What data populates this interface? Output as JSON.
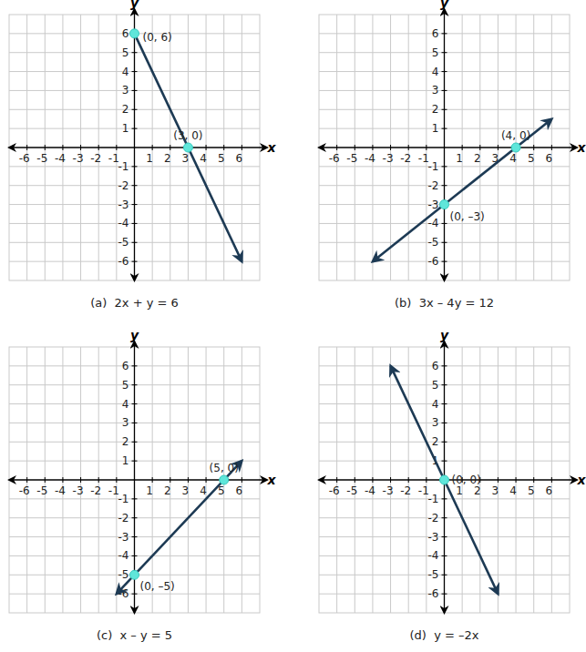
{
  "chart_data": [
    {
      "type": "line",
      "title": "(a)  2x + y = 6",
      "x_label": "x",
      "y_label": "y",
      "xlim": [
        -7,
        7
      ],
      "ylim": [
        -7,
        7
      ],
      "xticks": [
        -6,
        -5,
        -4,
        -3,
        -2,
        -1,
        1,
        2,
        3,
        4,
        5,
        6
      ],
      "yticks": [
        -6,
        -5,
        -4,
        -3,
        -2,
        -1,
        1,
        2,
        3,
        4,
        5,
        6
      ],
      "grid": true,
      "series": [
        {
          "color": "#1d3a54",
          "x": [
            0,
            6
          ],
          "values": [
            6,
            -6
          ]
        }
      ],
      "points": [
        {
          "x": 0,
          "y": 6,
          "label": "(0, 6)"
        },
        {
          "x": 3,
          "y": 0,
          "label": "(3, 0)"
        }
      ]
    },
    {
      "type": "line",
      "title": "(b)  3x – 4y = 12",
      "x_label": "x",
      "y_label": "y",
      "xlim": [
        -7,
        7
      ],
      "ylim": [
        -7,
        7
      ],
      "xticks": [
        -6,
        -5,
        -4,
        -3,
        -2,
        -1,
        1,
        2,
        3,
        4,
        5,
        6
      ],
      "yticks": [
        -6,
        -5,
        -4,
        -3,
        -2,
        -1,
        1,
        2,
        3,
        4,
        5,
        6
      ],
      "grid": true,
      "series": [
        {
          "color": "#1d3a54",
          "x": [
            -4,
            6
          ],
          "values": [
            -6,
            1.5
          ]
        }
      ],
      "points": [
        {
          "x": 4,
          "y": 0,
          "label": "(4, 0)"
        },
        {
          "x": 0,
          "y": -3,
          "label": "(0, –3)"
        }
      ]
    },
    {
      "type": "line",
      "title": "(c)  x – y = 5",
      "x_label": "x",
      "y_label": "y",
      "xlim": [
        -7,
        7
      ],
      "ylim": [
        -7,
        7
      ],
      "xticks": [
        -6,
        -5,
        -4,
        -3,
        -2,
        -1,
        1,
        2,
        3,
        4,
        5,
        6
      ],
      "yticks": [
        -6,
        -5,
        -4,
        -3,
        -2,
        -1,
        1,
        2,
        3,
        4,
        5,
        6
      ],
      "grid": true,
      "series": [
        {
          "color": "#1d3a54",
          "x": [
            -1,
            6
          ],
          "values": [
            -6,
            1
          ]
        }
      ],
      "points": [
        {
          "x": 5,
          "y": 0,
          "label": "(5, 0)"
        },
        {
          "x": 0,
          "y": -5,
          "label": "(0, –5)"
        }
      ]
    },
    {
      "type": "line",
      "title": "(d)  y = –2x",
      "x_label": "x",
      "y_label": "y",
      "xlim": [
        -7,
        7
      ],
      "ylim": [
        -7,
        7
      ],
      "xticks": [
        -6,
        -5,
        -4,
        -3,
        -2,
        -1,
        1,
        2,
        3,
        4,
        5,
        6
      ],
      "yticks": [
        -6,
        -5,
        -4,
        -3,
        -2,
        -1,
        1,
        2,
        3,
        4,
        5,
        6
      ],
      "grid": true,
      "series": [
        {
          "color": "#1d3a54",
          "x": [
            -3,
            3
          ],
          "values": [
            6,
            -6
          ]
        }
      ],
      "points": [
        {
          "x": 0,
          "y": 0,
          "label": "(0, 0)"
        }
      ]
    }
  ]
}
